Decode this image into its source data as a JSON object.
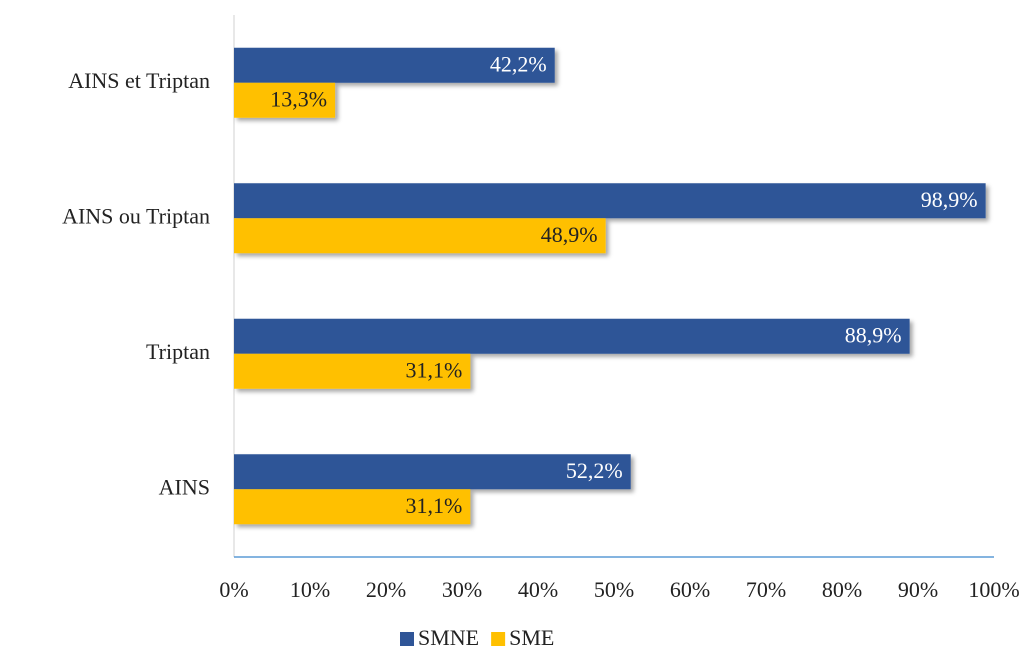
{
  "chart_data": {
    "type": "bar",
    "orientation": "horizontal",
    "categories": [
      "AINS et Triptan",
      "AINS ou Triptan",
      "Triptan",
      "AINS"
    ],
    "series": [
      {
        "name": "SMNE",
        "color": "#2f5597",
        "values": [
          42.2,
          98.9,
          88.9,
          52.2
        ],
        "value_labels": [
          "42,2%",
          "98,9%",
          "88,9%",
          "52,2%"
        ]
      },
      {
        "name": "SME",
        "color": "#ffc000",
        "values": [
          13.3,
          48.9,
          31.1,
          31.1
        ],
        "value_labels": [
          "13,3%",
          "48,9%",
          "31,1%",
          "31,1%"
        ]
      }
    ],
    "xlim": [
      0,
      100
    ],
    "xticks": [
      {
        "value": 0,
        "label": "0%"
      },
      {
        "value": 10,
        "label": "10%"
      },
      {
        "value": 20,
        "label": "20%"
      },
      {
        "value": 30,
        "label": "30%"
      },
      {
        "value": 40,
        "label": "40%"
      },
      {
        "value": 50,
        "label": "50%"
      },
      {
        "value": 60,
        "label": "60%"
      },
      {
        "value": 70,
        "label": "70%"
      },
      {
        "value": 80,
        "label": "80%"
      },
      {
        "value": 90,
        "label": "90%"
      },
      {
        "value": 100,
        "label": "100%"
      }
    ],
    "legend": "bottom"
  }
}
